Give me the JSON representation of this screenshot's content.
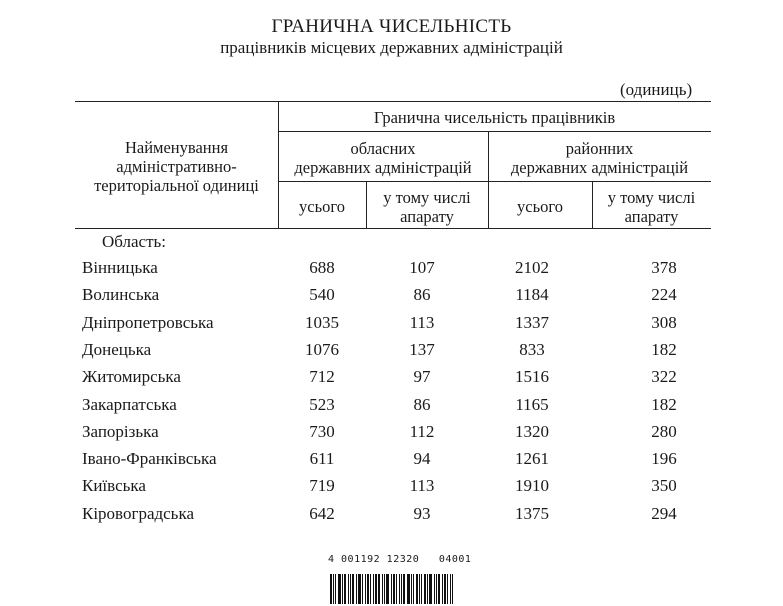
{
  "title": "ГРАНИЧНА ЧИСЕЛЬНІСТЬ",
  "subtitle": "працівників місцевих державних адміністрацій",
  "units": "(одиниць)",
  "header": {
    "name_col": [
      "Найменування",
      "адміністративно-",
      "територіальної одиниці"
    ],
    "group": "Гранична чисельність працівників",
    "oblast": [
      "обласних",
      "державних адміністрацій"
    ],
    "raion": [
      "районних",
      "державних адміністрацій"
    ],
    "total": "усього",
    "incl": [
      "у тому числі",
      "апарату"
    ]
  },
  "section": "Область:",
  "rows": [
    {
      "name": "Вінницька",
      "o_total": "688",
      "o_app": "107",
      "r_total": "2102",
      "r_app": "378"
    },
    {
      "name": "Волинська",
      "o_total": "540",
      "o_app": "86",
      "r_total": "1184",
      "r_app": "224"
    },
    {
      "name": "Дніпропетровська",
      "o_total": "1035",
      "o_app": "113",
      "r_total": "1337",
      "r_app": "308"
    },
    {
      "name": "Донецька",
      "o_total": "1076",
      "o_app": "137",
      "r_total": "833",
      "r_app": "182"
    },
    {
      "name": "Житомирська",
      "o_total": "712",
      "o_app": "97",
      "r_total": "1516",
      "r_app": "322"
    },
    {
      "name": "Закарпатська",
      "o_total": "523",
      "o_app": "86",
      "r_total": "1165",
      "r_app": "182"
    },
    {
      "name": "Запорізька",
      "o_total": "730",
      "o_app": "112",
      "r_total": "1320",
      "r_app": "280"
    },
    {
      "name": "Івано-Франківська",
      "o_total": "611",
      "o_app": "94",
      "r_total": "1261",
      "r_app": "196"
    },
    {
      "name": "Київська",
      "o_total": "719",
      "o_app": "113",
      "r_total": "1910",
      "r_app": "350"
    },
    {
      "name": "Кіровоградська",
      "o_total": "642",
      "o_app": "93",
      "r_total": "1375",
      "r_app": "294"
    }
  ],
  "barcode_text": "4 001192 12320   04001"
}
